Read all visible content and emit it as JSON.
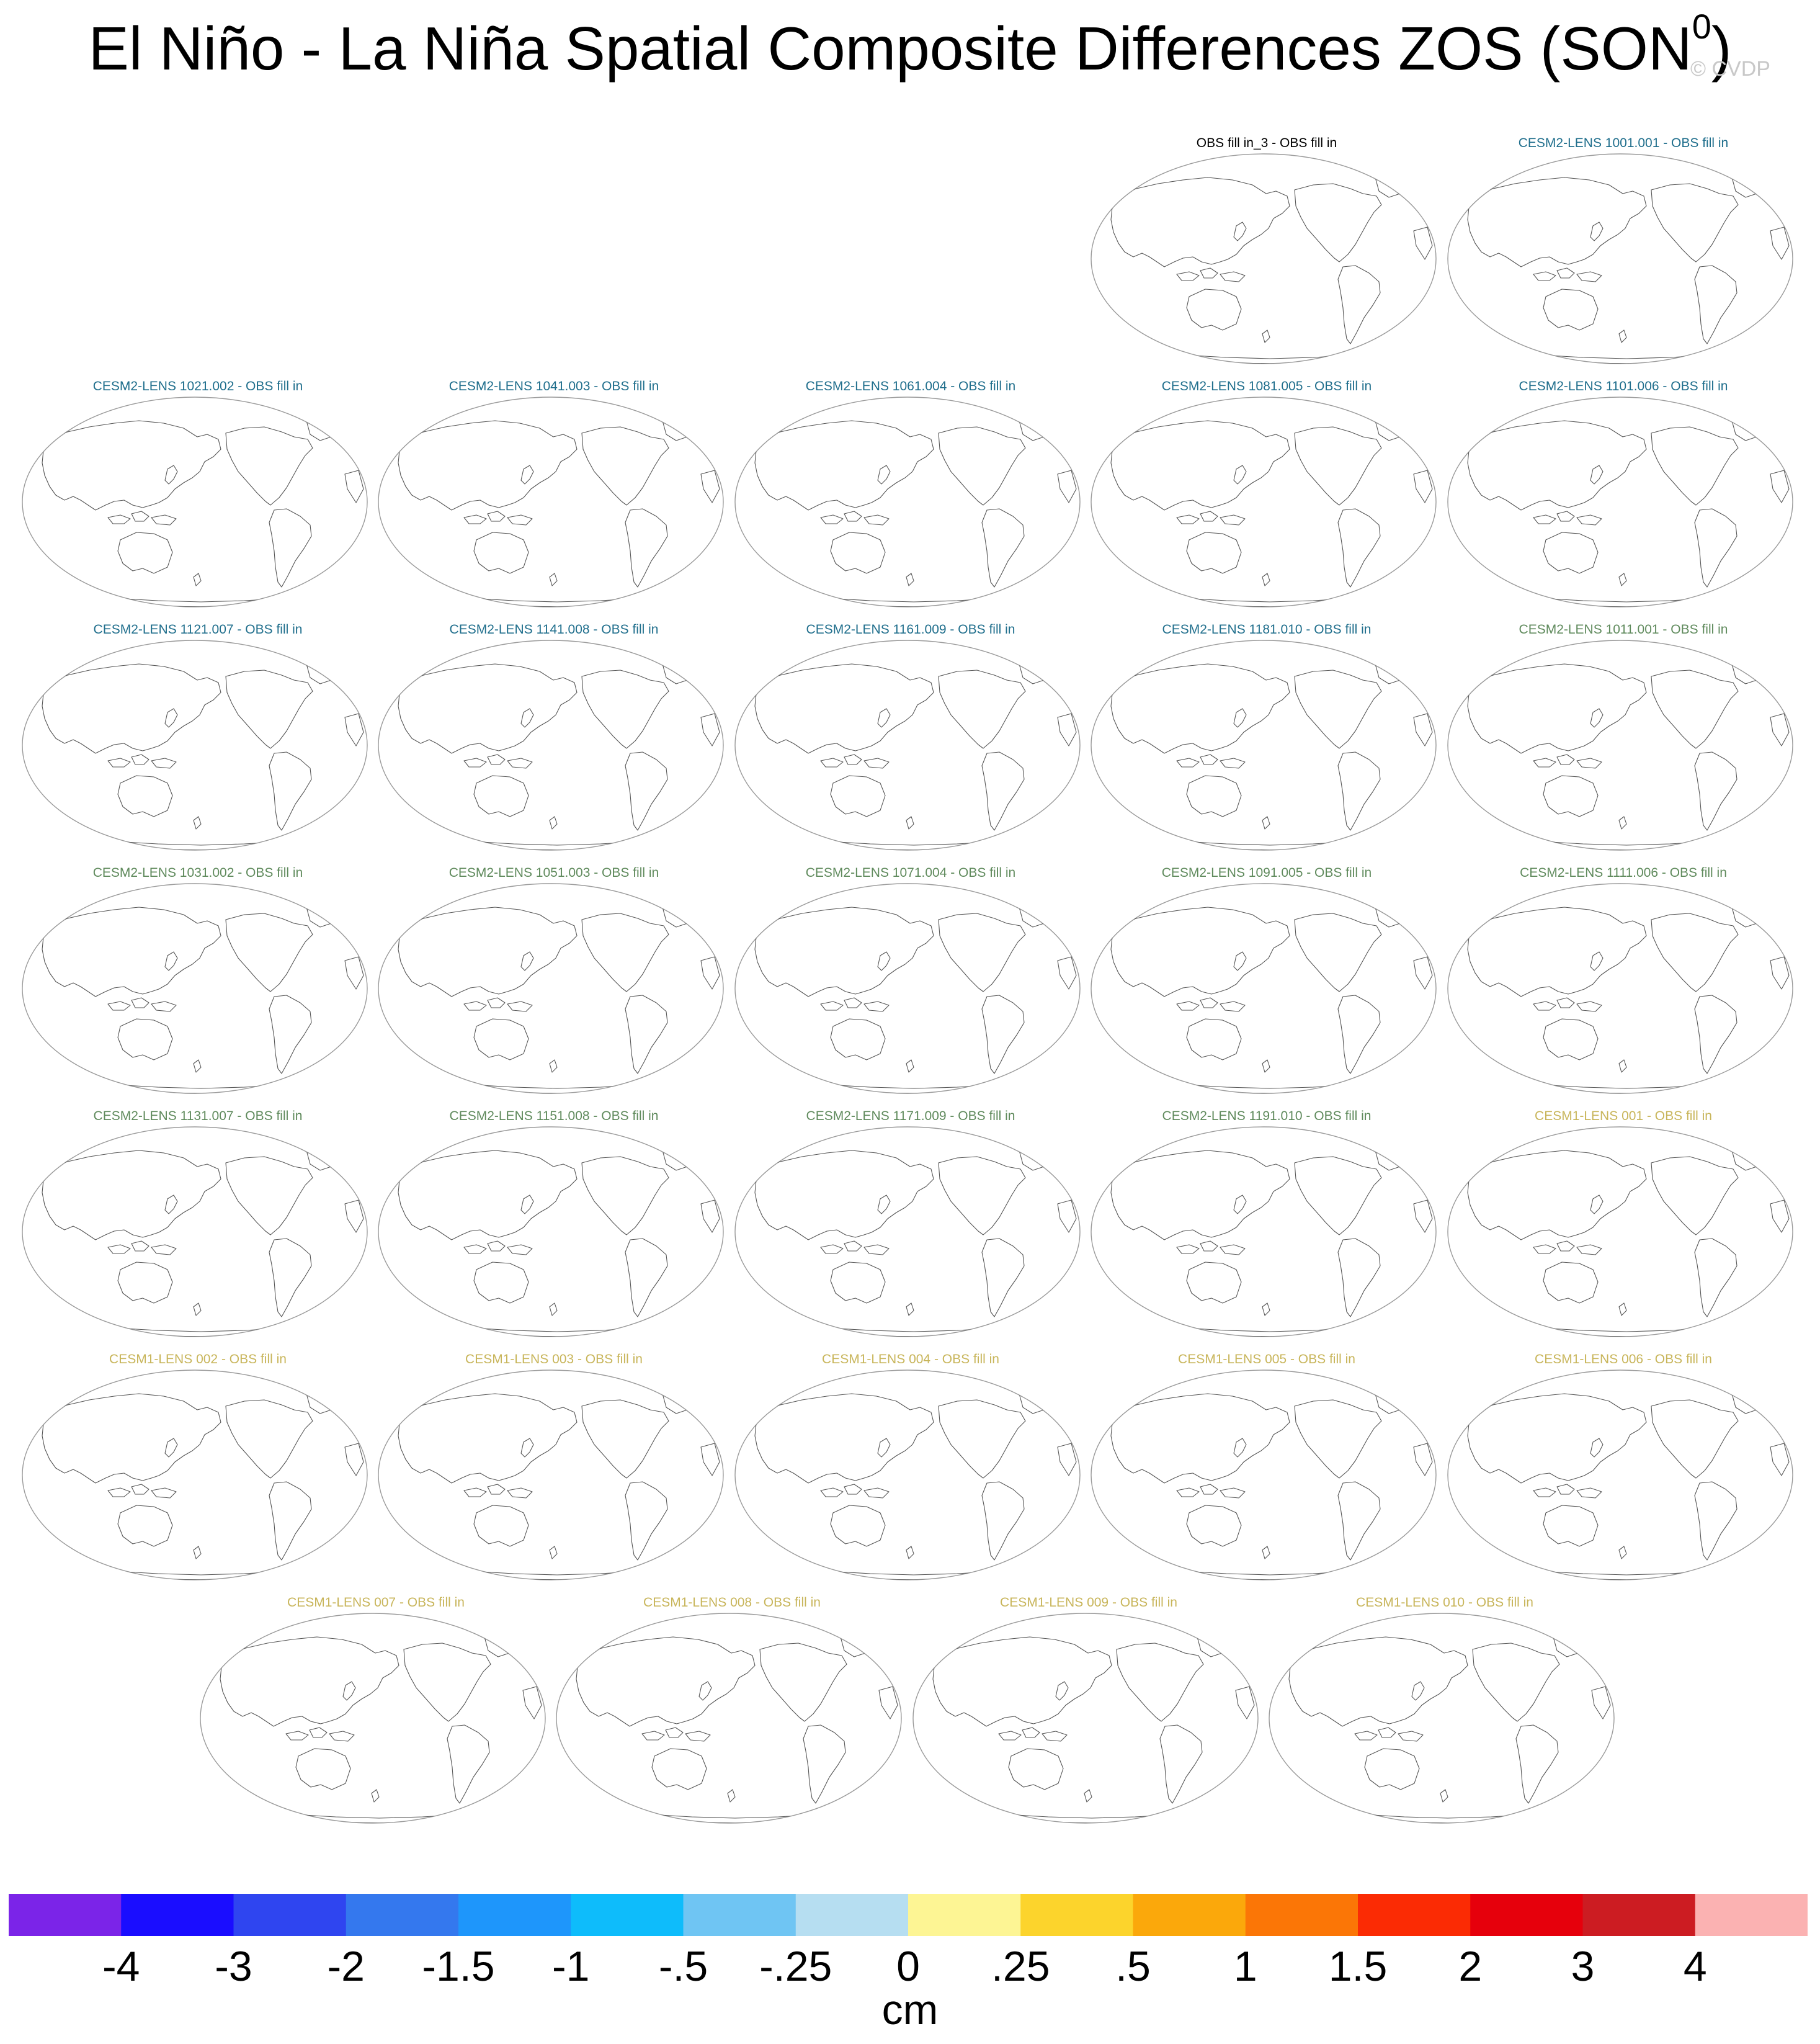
{
  "title": {
    "main": "El Niño - La Niña Spatial Composite Differences ZOS (SON",
    "superscript": "0",
    "close": ")"
  },
  "watermark": "© CVDP",
  "chart_data": {
    "type": "heatmap",
    "description_kind": "multi-panel global maps (all panels show only coastlines, no filled values)",
    "panels": [
      {
        "label": "OBS fill in_3 - OBS fill in",
        "color": "#000000"
      },
      {
        "label": "CESM2-LENS 1001.001 - OBS fill in",
        "color": "#1f6e8c"
      },
      {
        "label": "CESM2-LENS 1021.002 - OBS fill in",
        "color": "#1f6e8c"
      },
      {
        "label": "CESM2-LENS 1041.003 - OBS fill in",
        "color": "#1f6e8c"
      },
      {
        "label": "CESM2-LENS 1061.004 - OBS fill in",
        "color": "#1f6e8c"
      },
      {
        "label": "CESM2-LENS 1081.005 - OBS fill in",
        "color": "#1f6e8c"
      },
      {
        "label": "CESM2-LENS 1101.006 - OBS fill in",
        "color": "#1f6e8c"
      },
      {
        "label": "CESM2-LENS 1121.007 - OBS fill in",
        "color": "#1f6e8c"
      },
      {
        "label": "CESM2-LENS 1141.008 - OBS fill in",
        "color": "#1f6e8c"
      },
      {
        "label": "CESM2-LENS 1161.009 - OBS fill in",
        "color": "#1f6e8c"
      },
      {
        "label": "CESM2-LENS 1181.010 - OBS fill in",
        "color": "#1f6e8c"
      },
      {
        "label": "CESM2-LENS 1011.001 - OBS fill in",
        "color": "#5f8a5c"
      },
      {
        "label": "CESM2-LENS 1031.002 - OBS fill in",
        "color": "#5f8a5c"
      },
      {
        "label": "CESM2-LENS 1051.003 - OBS fill in",
        "color": "#5f8a5c"
      },
      {
        "label": "CESM2-LENS 1071.004 - OBS fill in",
        "color": "#5f8a5c"
      },
      {
        "label": "CESM2-LENS 1091.005 - OBS fill in",
        "color": "#5f8a5c"
      },
      {
        "label": "CESM2-LENS 1111.006 - OBS fill in",
        "color": "#5f8a5c"
      },
      {
        "label": "CESM2-LENS 1131.007 - OBS fill in",
        "color": "#5f8a5c"
      },
      {
        "label": "CESM2-LENS 1151.008 - OBS fill in",
        "color": "#5f8a5c"
      },
      {
        "label": "CESM2-LENS 1171.009 - OBS fill in",
        "color": "#5f8a5c"
      },
      {
        "label": "CESM2-LENS 1191.010 - OBS fill in",
        "color": "#5f8a5c"
      },
      {
        "label": "CESM1-LENS 001 - OBS fill in",
        "color": "#c8b55a"
      },
      {
        "label": "CESM1-LENS 002 - OBS fill in",
        "color": "#c8b55a"
      },
      {
        "label": "CESM1-LENS 003 - OBS fill in",
        "color": "#c8b55a"
      },
      {
        "label": "CESM1-LENS 004 - OBS fill in",
        "color": "#c8b55a"
      },
      {
        "label": "CESM1-LENS 005 - OBS fill in",
        "color": "#c8b55a"
      },
      {
        "label": "CESM1-LENS 006 - OBS fill in",
        "color": "#c8b55a"
      },
      {
        "label": "CESM1-LENS 007 - OBS fill in",
        "color": "#c8b55a"
      },
      {
        "label": "CESM1-LENS 008 - OBS fill in",
        "color": "#c8b55a"
      },
      {
        "label": "CESM1-LENS 009 - OBS fill in",
        "color": "#c8b55a"
      },
      {
        "label": "CESM1-LENS 010 - OBS fill in",
        "color": "#c8b55a"
      }
    ],
    "colorbar": {
      "units": "cm",
      "tick_labels": [
        "-4",
        "-3",
        "-2",
        "-1.5",
        "-1",
        "-.5",
        "-.25",
        "0",
        ".25",
        ".5",
        "1",
        "1.5",
        "2",
        "3",
        "4"
      ],
      "colors": [
        "#7b24e8",
        "#1a0dff",
        "#2f45f0",
        "#3478ee",
        "#1e96fb",
        "#0ebcfb",
        "#6fc5f3",
        "#b6def1",
        "#fdf594",
        "#fcd42c",
        "#fba80b",
        "#fb7606",
        "#fb2b04",
        "#e6000c",
        "#cc1c22",
        "#fbb2b2"
      ]
    }
  }
}
